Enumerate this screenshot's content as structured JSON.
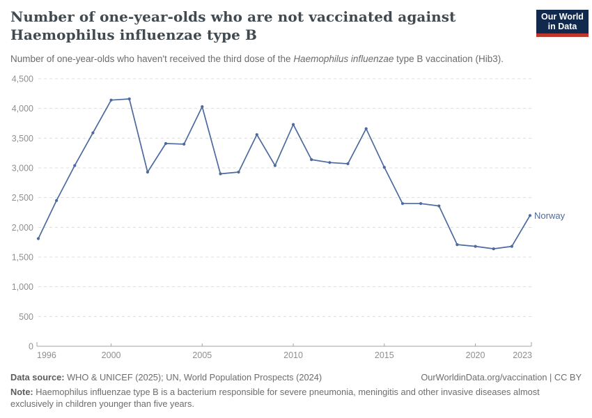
{
  "header": {
    "title_lines": [
      "Number of one-year-olds who are not vaccinated against",
      "Haemophilus influenzae type B"
    ],
    "subtitle_parts": {
      "before": "Number of one-year-olds who haven't received the third dose of the ",
      "italic": "Haemophilus influenzae",
      "after": " type B vaccination (Hib3)."
    },
    "logo": {
      "line1": "Our World",
      "line2": "in Data",
      "bg_color": "#12294E",
      "bar_color": "#BE362C"
    }
  },
  "chart_data": {
    "type": "line",
    "title": "Number of one-year-olds who are not vaccinated against Haemophilus influenzae type B",
    "xlabel": "",
    "ylabel": "",
    "x": [
      1996,
      1997,
      1998,
      1999,
      2000,
      2001,
      2002,
      2003,
      2004,
      2005,
      2006,
      2007,
      2008,
      2009,
      2010,
      2011,
      2012,
      2013,
      2014,
      2015,
      2016,
      2017,
      2018,
      2019,
      2020,
      2021,
      2022,
      2023
    ],
    "series": [
      {
        "name": "Norway",
        "color": "#4C6A9D",
        "values": [
          1810,
          2450,
          3040,
          3590,
          4140,
          4160,
          2930,
          3410,
          3400,
          4030,
          2900,
          2930,
          3560,
          3040,
          3730,
          3140,
          3090,
          3070,
          3660,
          3010,
          2400,
          2400,
          2360,
          1710,
          1680,
          1640,
          1680,
          2200
        ]
      }
    ],
    "xlim": [
      1996,
      2023
    ],
    "ylim": [
      0,
      4500
    ],
    "xticks": [
      1996,
      2000,
      2005,
      2010,
      2015,
      2020,
      2023
    ],
    "yticks": [
      0,
      500,
      1000,
      1500,
      2000,
      2500,
      3000,
      3500,
      4000,
      4500
    ],
    "grid": "horizontal-dashed",
    "legend_position": "end-of-line-label",
    "entity_label": "Norway"
  },
  "footer": {
    "source_label": "Data source:",
    "source_text": " WHO & UNICEF (2025); UN, World Population Prospects (2024)",
    "link_text": "OurWorldinData.org/vaccination | CC BY",
    "note_label": "Note:",
    "note_line1": " Haemophilus influenzae type B is a bacterium responsible for severe pneumonia, meningitis and other invasive diseases almost",
    "note_line2": "exclusively in children younger than five years."
  },
  "colors": {
    "line": "#4C6A9D",
    "axis_text": "#8F8F8F",
    "grid_line": "#DCDCDC",
    "axis_line": "#A3A3A3",
    "title_text": "#414A51",
    "subtitle_text": "#6B6B6B"
  }
}
